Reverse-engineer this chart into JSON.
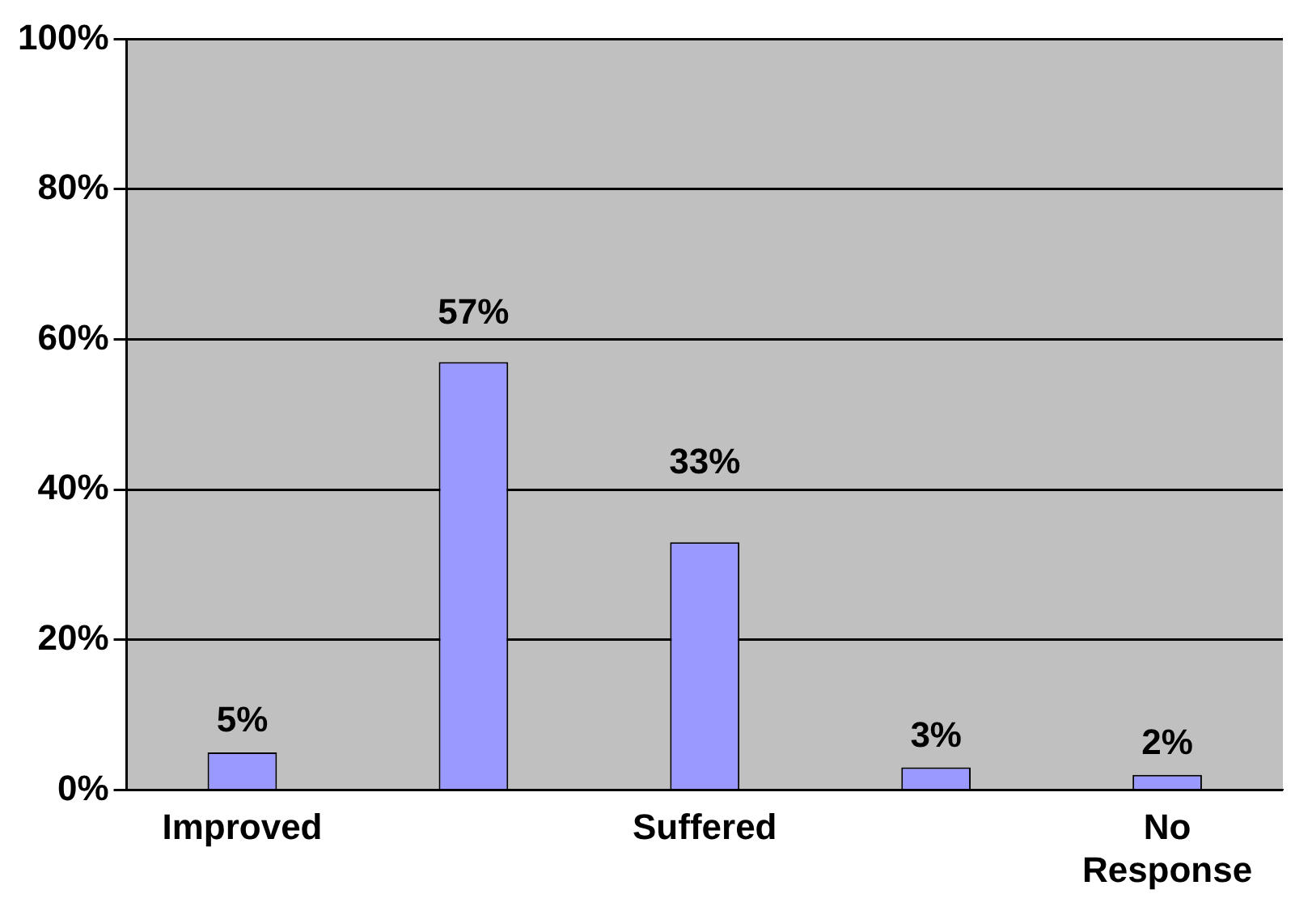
{
  "chart_data": {
    "type": "bar",
    "categories": [
      "Improved",
      null,
      "Suffered",
      null,
      "No Response"
    ],
    "values": [
      5,
      57,
      33,
      3,
      2
    ],
    "color": "#9999ff",
    "value_labels": [
      "5%",
      "57%",
      "33%",
      "3%",
      "2%"
    ],
    "ylim": [
      0,
      100
    ],
    "yticks": [
      {
        "value": 0,
        "label": "0%"
      },
      {
        "value": 20,
        "label": "20%"
      },
      {
        "value": 40,
        "label": "40%"
      },
      {
        "value": 60,
        "label": "60%"
      },
      {
        "value": 80,
        "label": "80%"
      },
      {
        "value": 100,
        "label": "100%"
      }
    ],
    "grid": "y",
    "legend": false
  }
}
